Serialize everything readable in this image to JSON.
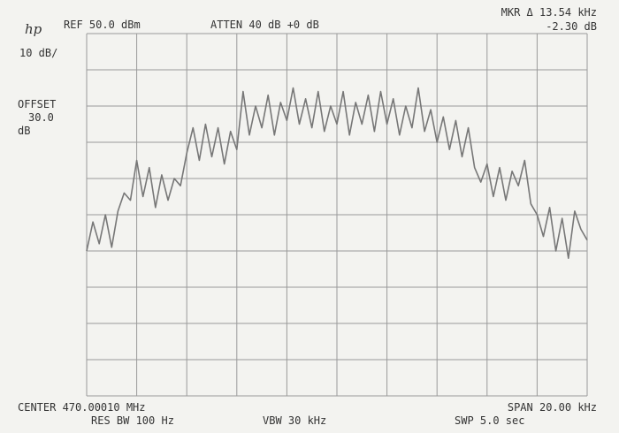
{
  "chart_data": {
    "type": "line",
    "logo": "hp",
    "reference": "REF 50.0 dBm",
    "attenuation": "ATTEN 40 dB +0 dB",
    "marker_label": "MKR Δ 13.54 kHz",
    "marker_value": "-2.30 dB",
    "scale": "10 dB/",
    "offset_label": "OFFSET",
    "offset_value": "30.0",
    "offset_unit": "dB",
    "center": "CENTER 470.00010 MHz",
    "span": "SPAN 20.00 kHz",
    "res_bw": "RES BW 100 Hz",
    "vbw": "VBW 30 kHz",
    "sweep": "SWP 5.0  sec",
    "xlim": [
      -10,
      10
    ],
    "ylim": [
      -50,
      50
    ],
    "xticks": [
      -10,
      -8,
      -6,
      -4,
      -2,
      0,
      2,
      4,
      6,
      8,
      10
    ],
    "yticks": [
      -50,
      -40,
      -30,
      -20,
      -10,
      0,
      10,
      20,
      30,
      40,
      50
    ],
    "grid": true,
    "color": "#777777",
    "x": [
      -10,
      -9.75,
      -9.5,
      -9.25,
      -9,
      -8.75,
      -8.5,
      -8.25,
      -8,
      -7.75,
      -7.5,
      -7.25,
      -7,
      -6.75,
      -6.5,
      -6.25,
      -6,
      -5.75,
      -5.5,
      -5.25,
      -5,
      -4.75,
      -4.5,
      -4.25,
      -4,
      -3.75,
      -3.5,
      -3.25,
      -3,
      -2.75,
      -2.5,
      -2.25,
      -2,
      -1.75,
      -1.5,
      -1.25,
      -1,
      -0.75,
      -0.5,
      -0.25,
      0,
      0.25,
      0.5,
      0.75,
      1,
      1.25,
      1.5,
      1.75,
      2,
      2.25,
      2.5,
      2.75,
      3,
      3.25,
      3.5,
      3.75,
      4,
      4.25,
      4.5,
      4.75,
      5,
      5.25,
      5.5,
      5.75,
      6,
      6.25,
      6.5,
      6.75,
      7,
      7.25,
      7.5,
      7.75,
      8,
      8.25,
      8.5,
      8.75,
      9,
      9.25,
      9.5,
      9.75,
      10
    ],
    "values": [
      -10,
      -2,
      -8,
      0,
      -9,
      1,
      6,
      4,
      15,
      5,
      13,
      2,
      11,
      4,
      10,
      8,
      17,
      24,
      15,
      25,
      16,
      24,
      14,
      23,
      18,
      34,
      22,
      30,
      24,
      33,
      22,
      31,
      26,
      35,
      25,
      32,
      24,
      34,
      23,
      30,
      25,
      34,
      22,
      31,
      25,
      33,
      23,
      34,
      25,
      32,
      22,
      30,
      24,
      35,
      23,
      29,
      20,
      27,
      18,
      26,
      16,
      24,
      13,
      9,
      14,
      5,
      13,
      4,
      12,
      8,
      15,
      3,
      0,
      -6,
      2,
      -10,
      -1,
      -12,
      1,
      -4,
      -7
    ]
  }
}
